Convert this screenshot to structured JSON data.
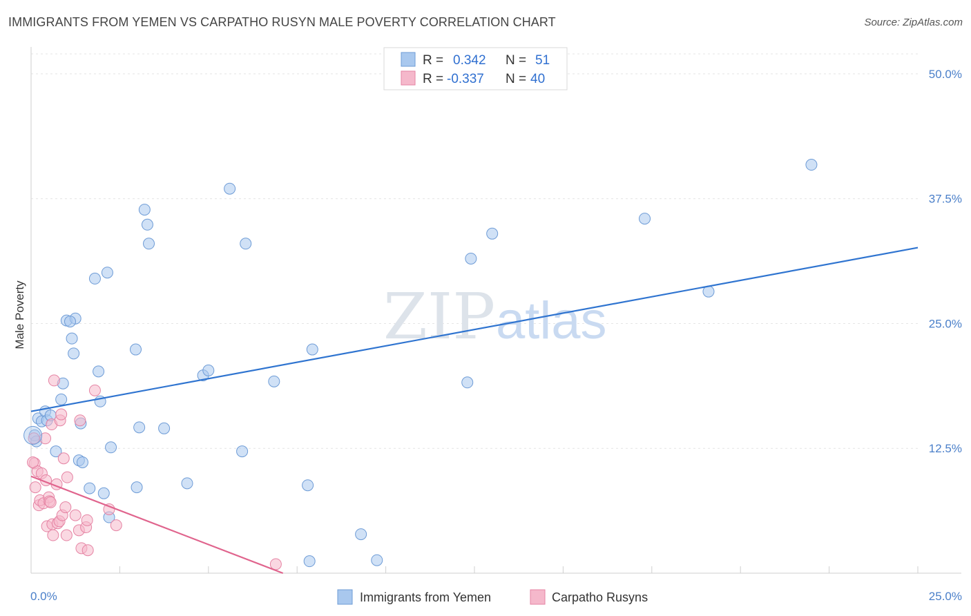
{
  "title": "IMMIGRANTS FROM YEMEN VS CARPATHO RUSYN MALE POVERTY CORRELATION CHART",
  "source": "Source: ZipAtlas.com",
  "watermark": {
    "zip": "ZIP",
    "atlas": "atlas"
  },
  "chart_data": {
    "type": "scatter",
    "title": "IMMIGRANTS FROM YEMEN VS CARPATHO RUSYN MALE POVERTY CORRELATION CHART",
    "xlabel": "",
    "ylabel": "Male Poverty",
    "xlim": [
      0,
      25
    ],
    "ylim": [
      0,
      52
    ],
    "x_tick_labels": [
      "0.0%",
      "25.0%"
    ],
    "y_ticks": [
      12.5,
      25.0,
      37.5,
      50.0
    ],
    "y_tick_labels": [
      "12.5%",
      "25.0%",
      "37.5%",
      "50.0%"
    ],
    "grid": true,
    "legend_top": [
      {
        "r_label": "R =",
        "r_value": "0.342",
        "n_label": "N =",
        "n_value": "51"
      },
      {
        "r_label": "R =",
        "r_value": "-0.337",
        "n_label": "N =",
        "n_value": "40"
      }
    ],
    "series": [
      {
        "name": "Immigrants from Yemen",
        "color": "#a9c8ee",
        "stroke": "#6d9bd6",
        "trend_color": "#2f74d0",
        "trend": [
          [
            0,
            16.2
          ],
          [
            25,
            32.6
          ]
        ],
        "points": [
          [
            0.1,
            13.8
          ],
          [
            0.15,
            13.2
          ],
          [
            0.2,
            15.5
          ],
          [
            0.3,
            15.2
          ],
          [
            0.4,
            16.2
          ],
          [
            0.45,
            15.3
          ],
          [
            0.55,
            15.8
          ],
          [
            0.7,
            12.2
          ],
          [
            0.85,
            17.4
          ],
          [
            0.9,
            19.0
          ],
          [
            1.0,
            25.3
          ],
          [
            1.25,
            25.5
          ],
          [
            1.1,
            25.2
          ],
          [
            1.15,
            23.5
          ],
          [
            1.2,
            22.0
          ],
          [
            1.4,
            15.0
          ],
          [
            1.35,
            11.3
          ],
          [
            1.45,
            11.1
          ],
          [
            1.65,
            8.5
          ],
          [
            1.8,
            29.5
          ],
          [
            1.9,
            20.2
          ],
          [
            1.95,
            17.2
          ],
          [
            2.05,
            8.0
          ],
          [
            2.15,
            30.1
          ],
          [
            2.2,
            5.6
          ],
          [
            2.25,
            12.6
          ],
          [
            2.95,
            22.4
          ],
          [
            2.98,
            8.6
          ],
          [
            3.05,
            14.6
          ],
          [
            3.2,
            36.4
          ],
          [
            3.28,
            34.9
          ],
          [
            3.32,
            33.0
          ],
          [
            3.75,
            14.5
          ],
          [
            4.4,
            9.0
          ],
          [
            4.85,
            19.8
          ],
          [
            5.0,
            20.3
          ],
          [
            5.6,
            38.5
          ],
          [
            5.95,
            12.2
          ],
          [
            6.05,
            33.0
          ],
          [
            6.85,
            19.2
          ],
          [
            7.8,
            8.8
          ],
          [
            7.85,
            1.2
          ],
          [
            7.93,
            22.4
          ],
          [
            9.3,
            3.9
          ],
          [
            9.75,
            1.3
          ],
          [
            12.3,
            19.1
          ],
          [
            12.4,
            31.5
          ],
          [
            13.0,
            34.0
          ],
          [
            17.3,
            35.5
          ],
          [
            19.1,
            28.2
          ],
          [
            22.0,
            40.9
          ]
        ]
      },
      {
        "name": "Carpatho Rusyns",
        "color": "#f5b8cb",
        "stroke": "#e583a3",
        "trend_color": "#e0648d",
        "trend": [
          [
            0,
            9.7
          ],
          [
            7.1,
            0
          ]
        ],
        "points": [
          [
            0.08,
            13.5
          ],
          [
            0.1,
            11.0
          ],
          [
            0.12,
            8.6
          ],
          [
            0.18,
            10.2
          ],
          [
            0.22,
            6.8
          ],
          [
            0.25,
            7.3
          ],
          [
            0.3,
            10.0
          ],
          [
            0.35,
            7.0
          ],
          [
            0.4,
            13.5
          ],
          [
            0.42,
            9.3
          ],
          [
            0.45,
            4.7
          ],
          [
            0.5,
            7.6
          ],
          [
            0.52,
            7.2
          ],
          [
            0.55,
            7.1
          ],
          [
            0.58,
            14.9
          ],
          [
            0.6,
            4.9
          ],
          [
            0.62,
            3.8
          ],
          [
            0.65,
            19.3
          ],
          [
            0.72,
            8.9
          ],
          [
            0.75,
            5.0
          ],
          [
            0.8,
            5.2
          ],
          [
            0.82,
            15.3
          ],
          [
            0.85,
            15.9
          ],
          [
            0.88,
            5.8
          ],
          [
            0.92,
            11.5
          ],
          [
            0.97,
            6.6
          ],
          [
            1.0,
            3.8
          ],
          [
            1.02,
            9.6
          ],
          [
            1.25,
            5.8
          ],
          [
            1.35,
            4.3
          ],
          [
            1.38,
            15.3
          ],
          [
            1.42,
            2.5
          ],
          [
            1.55,
            4.6
          ],
          [
            1.58,
            5.3
          ],
          [
            1.6,
            2.3
          ],
          [
            1.8,
            18.3
          ],
          [
            2.2,
            6.4
          ],
          [
            2.4,
            4.8
          ],
          [
            6.9,
            0.9
          ],
          [
            0.05,
            11.1
          ]
        ]
      }
    ]
  }
}
